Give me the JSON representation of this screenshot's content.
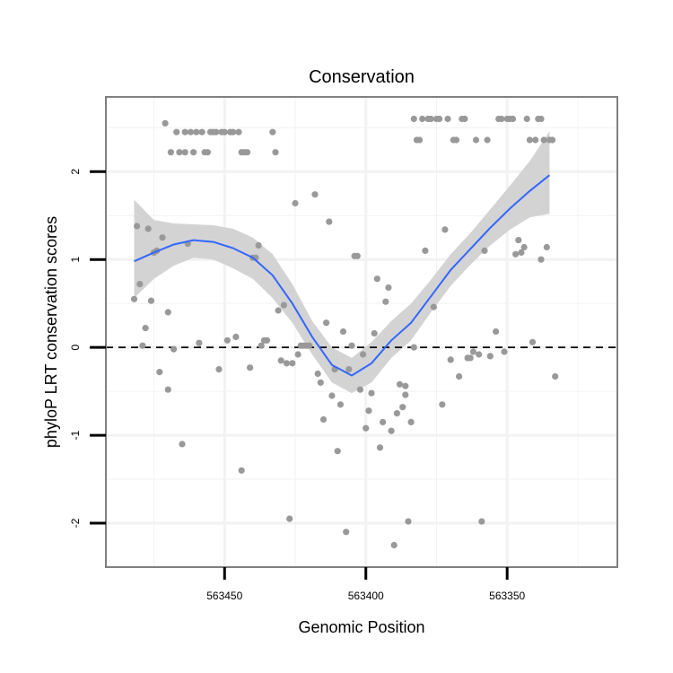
{
  "chart_data": {
    "type": "scatter",
    "title": "Conservation",
    "xlabel": "Genomic Position",
    "ylabel": "phyloP LRT conservation scores",
    "x_reversed": true,
    "xlim": [
      563492,
      563311
    ],
    "ylim": [
      -2.5,
      2.85
    ],
    "x_ticks": [
      563450,
      563400,
      563350
    ],
    "x_tick_labels": [
      "563450",
      "563400",
      "563350"
    ],
    "y_ticks": [
      -2,
      -1,
      0,
      1,
      2
    ],
    "y_tick_labels": [
      "-2",
      "-1",
      "0",
      "1",
      "2"
    ],
    "reference_line": {
      "y": 0,
      "style": "dashed"
    },
    "grid": true,
    "colors": {
      "points": "#999999",
      "smooth_line": "#3366ff",
      "ribbon": "#d3d3d3",
      "panel_border": "#808080",
      "grid": "#f2f2f2"
    },
    "points": [
      [
        563482,
        0.55
      ],
      [
        563481,
        1.38
      ],
      [
        563480,
        0.72
      ],
      [
        563479,
        0.02
      ],
      [
        563478,
        0.22
      ],
      [
        563477,
        1.35
      ],
      [
        563476,
        0.53
      ],
      [
        563475,
        1.08
      ],
      [
        563474,
        1.1
      ],
      [
        563473,
        -0.28
      ],
      [
        563472,
        1.25
      ],
      [
        563471,
        2.55
      ],
      [
        563470,
        -0.48
      ],
      [
        563470,
        0.4
      ],
      [
        563469,
        2.22
      ],
      [
        563468,
        -0.02
      ],
      [
        563467,
        2.45
      ],
      [
        563466,
        2.22
      ],
      [
        563465,
        -1.1
      ],
      [
        563464,
        2.22
      ],
      [
        563464,
        2.45
      ],
      [
        563463,
        1.18
      ],
      [
        563462,
        2.45
      ],
      [
        563461,
        2.22
      ],
      [
        563460,
        2.45
      ],
      [
        563459,
        0.05
      ],
      [
        563458,
        2.45
      ],
      [
        563457,
        2.22
      ],
      [
        563456,
        2.22
      ],
      [
        563455,
        2.45
      ],
      [
        563454,
        2.45
      ],
      [
        563453,
        2.45
      ],
      [
        563452,
        -0.25
      ],
      [
        563451,
        2.45
      ],
      [
        563450,
        2.45
      ],
      [
        563449,
        0.08
      ],
      [
        563448,
        2.45
      ],
      [
        563447,
        2.45
      ],
      [
        563446,
        0.12
      ],
      [
        563445,
        2.45
      ],
      [
        563444,
        -1.4
      ],
      [
        563444,
        2.22
      ],
      [
        563443,
        2.22
      ],
      [
        563442,
        2.22
      ],
      [
        563441,
        -0.23
      ],
      [
        563440,
        1.02
      ],
      [
        563439,
        1.02
      ],
      [
        563438,
        1.16
      ],
      [
        563437,
        0.02
      ],
      [
        563436,
        0.08
      ],
      [
        563435,
        0.08
      ],
      [
        563433,
        2.45
      ],
      [
        563432,
        2.22
      ],
      [
        563431,
        0.42
      ],
      [
        563430,
        -0.15
      ],
      [
        563429,
        0.48
      ],
      [
        563428,
        -0.18
      ],
      [
        563427,
        -1.95
      ],
      [
        563426,
        -0.18
      ],
      [
        563425,
        1.64
      ],
      [
        563424,
        -0.08
      ],
      [
        563423,
        0.02
      ],
      [
        563422,
        0.02
      ],
      [
        563421,
        0.02
      ],
      [
        563420,
        0.02
      ],
      [
        563418,
        1.74
      ],
      [
        563417,
        -0.3
      ],
      [
        563416,
        -0.4
      ],
      [
        563415,
        -0.82
      ],
      [
        563414,
        0.28
      ],
      [
        563413,
        1.43
      ],
      [
        563412,
        -0.55
      ],
      [
        563411,
        -0.25
      ],
      [
        563410,
        -1.18
      ],
      [
        563409,
        -0.65
      ],
      [
        563408,
        0.18
      ],
      [
        563407,
        -2.1
      ],
      [
        563406,
        -0.25
      ],
      [
        563405,
        0.02
      ],
      [
        563404,
        1.04
      ],
      [
        563403,
        1.04
      ],
      [
        563402,
        -0.48
      ],
      [
        563401,
        -0.08
      ],
      [
        563400,
        -0.92
      ],
      [
        563399,
        -0.72
      ],
      [
        563398,
        -0.52
      ],
      [
        563397,
        0.16
      ],
      [
        563396,
        0.78
      ],
      [
        563395,
        -1.14
      ],
      [
        563394,
        -0.85
      ],
      [
        563393,
        0.52
      ],
      [
        563392,
        0.68
      ],
      [
        563391,
        -0.95
      ],
      [
        563390,
        -2.25
      ],
      [
        563389,
        -0.75
      ],
      [
        563388,
        -0.42
      ],
      [
        563387,
        -0.68
      ],
      [
        563386,
        -0.44
      ],
      [
        563386,
        -0.54
      ],
      [
        563385,
        -1.98
      ],
      [
        563384,
        -0.85
      ],
      [
        563383,
        0.0
      ],
      [
        563383,
        2.6
      ],
      [
        563382,
        2.36
      ],
      [
        563381,
        2.36
      ],
      [
        563380,
        2.6
      ],
      [
        563379,
        1.1
      ],
      [
        563378,
        2.6
      ],
      [
        563377,
        2.6
      ],
      [
        563376,
        0.46
      ],
      [
        563375,
        2.6
      ],
      [
        563374,
        2.6
      ],
      [
        563373,
        -0.65
      ],
      [
        563372,
        1.34
      ],
      [
        563371,
        2.6
      ],
      [
        563370,
        -0.14
      ],
      [
        563369,
        2.36
      ],
      [
        563368,
        2.36
      ],
      [
        563367,
        -0.33
      ],
      [
        563366,
        2.6
      ],
      [
        563365,
        2.6
      ],
      [
        563364,
        -0.12
      ],
      [
        563363,
        -0.12
      ],
      [
        563362,
        -0.05
      ],
      [
        563361,
        2.36
      ],
      [
        563360,
        -0.08
      ],
      [
        563359,
        -1.98
      ],
      [
        563358,
        1.1
      ],
      [
        563357,
        2.36
      ],
      [
        563356,
        -0.1
      ],
      [
        563354,
        0.18
      ],
      [
        563353,
        2.6
      ],
      [
        563352,
        2.6
      ],
      [
        563351,
        -0.05
      ],
      [
        563350,
        2.6
      ],
      [
        563349,
        2.6
      ],
      [
        563348,
        2.6
      ],
      [
        563347,
        1.06
      ],
      [
        563346,
        1.22
      ],
      [
        563345,
        1.08
      ],
      [
        563344,
        1.14
      ],
      [
        563343,
        2.6
      ],
      [
        563342,
        2.36
      ],
      [
        563341,
        0.06
      ],
      [
        563340,
        2.36
      ],
      [
        563339,
        2.6
      ],
      [
        563338,
        2.6
      ],
      [
        563338,
        1.0
      ],
      [
        563337,
        2.36
      ],
      [
        563336,
        1.14
      ],
      [
        563335,
        2.36
      ],
      [
        563334,
        2.36
      ],
      [
        563333,
        -0.33
      ]
    ],
    "smooth": {
      "x": [
        563482,
        563475,
        563468,
        563461,
        563454,
        563447,
        563440,
        563433,
        563426,
        563419,
        563412,
        563405,
        563398,
        563391,
        563384,
        563377,
        563370,
        563363,
        563356,
        563349,
        563342,
        563335
      ],
      "y": [
        0.98,
        1.08,
        1.17,
        1.22,
        1.2,
        1.13,
        1.02,
        0.82,
        0.5,
        0.12,
        -0.2,
        -0.32,
        -0.18,
        0.08,
        0.28,
        0.58,
        0.88,
        1.12,
        1.36,
        1.58,
        1.78,
        1.96
      ],
      "lower": [
        0.56,
        0.78,
        0.93,
        1.02,
        1.0,
        0.9,
        0.78,
        0.56,
        0.28,
        -0.08,
        -0.4,
        -0.52,
        -0.4,
        -0.12,
        0.08,
        0.4,
        0.7,
        0.94,
        1.16,
        1.34,
        1.48,
        1.52
      ],
      "upper": [
        1.68,
        1.45,
        1.41,
        1.4,
        1.39,
        1.35,
        1.25,
        1.06,
        0.72,
        0.3,
        -0.0,
        -0.12,
        0.06,
        0.3,
        0.5,
        0.77,
        1.06,
        1.3,
        1.57,
        1.84,
        2.12,
        2.46
      ]
    }
  }
}
